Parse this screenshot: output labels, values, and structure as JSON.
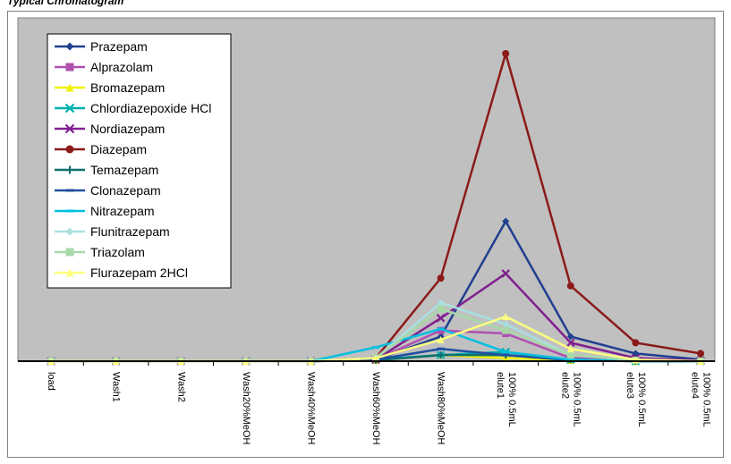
{
  "header": {
    "text": "Typical Chromatogram"
  },
  "chart_data": {
    "type": "line",
    "title": "",
    "xlabel": "",
    "ylabel": "",
    "categories": [
      "load",
      "Wash1",
      "Wash2",
      "Wash20%MeOH",
      "Wash40%MeOH",
      "Wash60%MeOH",
      "Wash80%MeOH",
      "elute1 100% 0.5mL",
      "elute2 100% 0.5mL",
      "elute3 100% 0.5mL",
      "elute4 100% 0.5mL"
    ],
    "category_lines": [
      [
        "load"
      ],
      [
        "Wash1"
      ],
      [
        "Wash2"
      ],
      [
        "Wash20%MeOH"
      ],
      [
        "Wash40%MeOH"
      ],
      [
        "Wash60%MeOH"
      ],
      [
        "Wash80%MeOH"
      ],
      [
        "elute1",
        "100% 0.5mL"
      ],
      [
        "elute2",
        "100% 0.5mL"
      ],
      [
        "elute3",
        "100% 0.5mL"
      ],
      [
        "elute4",
        "100% 0.5mL"
      ]
    ],
    "ylim": [
      0,
      100
    ],
    "grid": false,
    "legend_position": "top-left",
    "plot_background": "#c0c0c0",
    "series": [
      {
        "name": "Prazepam",
        "color": "#1f3f8f",
        "marker": "diamond",
        "values": [
          0,
          0,
          0,
          0,
          0,
          0.5,
          8,
          45.5,
          8,
          2.5,
          0.5
        ]
      },
      {
        "name": "Alprazolam",
        "color": "#b050b0",
        "marker": "square",
        "values": [
          0,
          0,
          0,
          0,
          0,
          0.5,
          10,
          9,
          1,
          0.3,
          0
        ]
      },
      {
        "name": "Bromazepam",
        "color": "#f0f000",
        "marker": "triangle",
        "values": [
          0,
          0,
          0,
          0,
          0,
          0.3,
          2,
          1,
          0.3,
          0,
          0
        ]
      },
      {
        "name": "Chlordiazepoxide HCl",
        "color": "#00b0b0",
        "marker": "x",
        "values": [
          0,
          0,
          0,
          0,
          0,
          0.5,
          2,
          3,
          0.5,
          0,
          0
        ]
      },
      {
        "name": "Nordiazepam",
        "color": "#80208f",
        "marker": "x",
        "values": [
          0,
          0,
          0,
          0,
          0,
          0.5,
          14,
          28.5,
          6,
          1,
          0.2
        ]
      },
      {
        "name": "Diazepam",
        "color": "#8b1a1a",
        "marker": "circle",
        "values": [
          0,
          0,
          0,
          0,
          0,
          1,
          27,
          100,
          24.5,
          6,
          2.5
        ]
      },
      {
        "name": "Temazepam",
        "color": "#0e6e6e",
        "marker": "plus",
        "values": [
          0,
          0,
          0,
          0,
          0,
          0.3,
          2,
          2,
          0.5,
          0,
          0
        ]
      },
      {
        "name": "Clonazepam",
        "color": "#1f4f9f",
        "marker": "dash",
        "values": [
          0,
          0,
          0,
          0,
          0,
          0.5,
          4,
          2,
          0.3,
          0,
          0
        ]
      },
      {
        "name": "Nitrazepam",
        "color": "#00c0e0",
        "marker": "dash",
        "values": [
          0,
          0,
          0,
          0,
          0,
          4.5,
          10.5,
          3,
          0.5,
          0,
          0
        ]
      },
      {
        "name": "Flunitrazepam",
        "color": "#a8e0e0",
        "marker": "diamond",
        "values": [
          0,
          0,
          0,
          0,
          0,
          1,
          19,
          12,
          2,
          0.3,
          0
        ]
      },
      {
        "name": "Triazolam",
        "color": "#a8d8a8",
        "marker": "square",
        "values": [
          0,
          0,
          0,
          0,
          0,
          1,
          17,
          10,
          2,
          0.3,
          0
        ]
      },
      {
        "name": "Flurazepam 2HCl",
        "color": "#ffff80",
        "marker": "triangle",
        "values": [
          0,
          0,
          0,
          0,
          0,
          1,
          7,
          14.5,
          4,
          0.5,
          0
        ]
      }
    ],
    "legend_labels": [
      "Prazepam",
      "Alprazolam",
      "Bromazepam",
      "Chlordiazepoxide HCl",
      "Nordiazepam",
      "Diazepam",
      "Temazepam",
      "Clonazepam",
      "Nitrazepam",
      "Flunitrazepam",
      "Triazolam",
      "Flurazepam    2HCl"
    ]
  }
}
